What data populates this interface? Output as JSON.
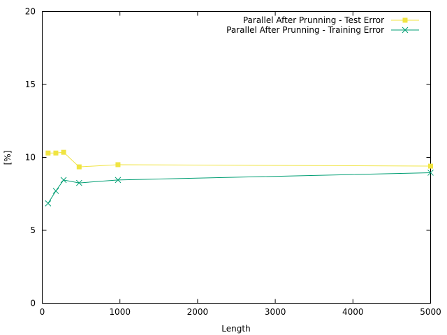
{
  "chart_data": {
    "type": "line",
    "title": "",
    "xlabel": "Length",
    "ylabel": "[%]",
    "xlim": [
      0,
      5000
    ],
    "ylim": [
      0,
      20
    ],
    "xticks": [
      0,
      1000,
      2000,
      3000,
      4000,
      5000
    ],
    "yticks": [
      0,
      5,
      10,
      15,
      20
    ],
    "xtick_labels": [
      "0",
      "1000",
      "2000",
      "3000",
      "4000",
      "5000"
    ],
    "ytick_labels": [
      "0",
      "5",
      "10",
      "15",
      "20"
    ],
    "grid": false,
    "legend_position": "top-right",
    "series": [
      {
        "name": "Parallel After Prunning - Test Error",
        "color": "#f0e442",
        "marker": "filled-square",
        "x": [
          75,
          175,
          275,
          475,
          975,
          5000
        ],
        "y": [
          10.3,
          10.3,
          10.35,
          9.35,
          9.5,
          9.4
        ]
      },
      {
        "name": "Parallel After Prunning - Training Error",
        "color": "#009e73",
        "marker": "x",
        "x": [
          75,
          175,
          275,
          475,
          975,
          5000
        ],
        "y": [
          6.85,
          7.7,
          8.45,
          8.25,
          8.45,
          8.95
        ]
      }
    ]
  }
}
